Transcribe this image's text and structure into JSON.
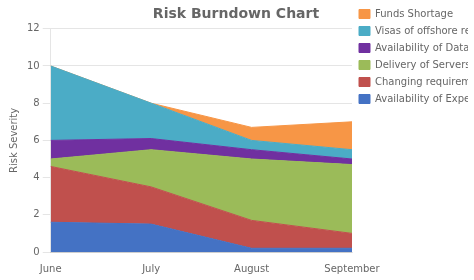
{
  "chart_data": {
    "type": "area",
    "title": "Risk Burndown Chart",
    "ylabel": "Risk Severity",
    "categories": [
      "June",
      "July",
      "August",
      "September"
    ],
    "series": [
      {
        "name": "Availability of Expert Developers",
        "color": "#4472C4",
        "values": [
          1.6,
          1.5,
          0.2,
          0.2
        ]
      },
      {
        "name": "Changing requirements",
        "color": "#C0504D",
        "values": [
          3.0,
          2.0,
          1.5,
          0.8
        ]
      },
      {
        "name": "Delivery of Servers on time",
        "color": "#9BBB59",
        "values": [
          0.4,
          2.0,
          3.3,
          3.7
        ]
      },
      {
        "name": "Availability of Database Architect",
        "color": "#7030A0",
        "values": [
          1.0,
          0.6,
          0.5,
          0.3
        ]
      },
      {
        "name": "Visas of offshore resources",
        "color": "#4BACC6",
        "values": [
          4.0,
          1.9,
          0.5,
          0.5
        ]
      },
      {
        "name": "Funds Shortage",
        "color": "#F79646",
        "values": [
          0.0,
          0.0,
          0.7,
          1.5
        ]
      }
    ],
    "stacked": true,
    "ylim": [
      0,
      12
    ],
    "yticks": [
      0,
      2,
      4,
      6,
      8,
      10,
      12
    ],
    "grid": "y",
    "legend": "right"
  }
}
